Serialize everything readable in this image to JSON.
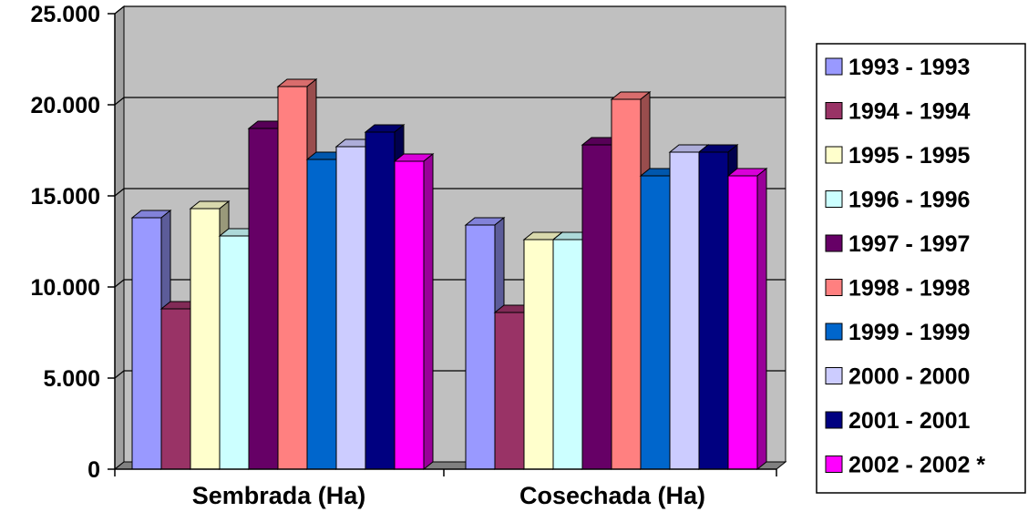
{
  "chart_data": {
    "type": "bar",
    "style": "3d-clustered-column",
    "categories": [
      "Sembrada (Ha)",
      "Cosechada (Ha)"
    ],
    "series": [
      {
        "name": "1993 - 1993",
        "color": "#9999FF",
        "values": [
          13800,
          13400
        ]
      },
      {
        "name": "1994 - 1994",
        "color": "#993366",
        "values": [
          8800,
          8600
        ]
      },
      {
        "name": "1995 - 1995",
        "color": "#FFFFCC",
        "values": [
          14300,
          12600
        ]
      },
      {
        "name": "1996 - 1996",
        "color": "#CCFFFF",
        "values": [
          12800,
          12600
        ]
      },
      {
        "name": "1997 - 1997",
        "color": "#660066",
        "values": [
          18700,
          17800
        ]
      },
      {
        "name": "1998 - 1998",
        "color": "#FF8080",
        "values": [
          21000,
          20300
        ]
      },
      {
        "name": "1999 - 1999",
        "color": "#0066CC",
        "values": [
          17000,
          16100
        ]
      },
      {
        "name": "2000 - 2000",
        "color": "#CCCCFF",
        "values": [
          17700,
          17400
        ]
      },
      {
        "name": "2001 - 2001",
        "color": "#000080",
        "values": [
          18500,
          17400
        ]
      },
      {
        "name": "2002 - 2002 *",
        "color": "#FF00FF",
        "values": [
          16900,
          16100
        ]
      }
    ],
    "yticks": [
      "0",
      "5.000",
      "10.000",
      "15.000",
      "20.000",
      "25.000"
    ],
    "ytick_values": [
      0,
      5000,
      10000,
      15000,
      20000,
      25000
    ],
    "ylim": [
      0,
      25000
    ],
    "grid": true,
    "legend": "right",
    "plot_background": "#C0C0C0"
  }
}
